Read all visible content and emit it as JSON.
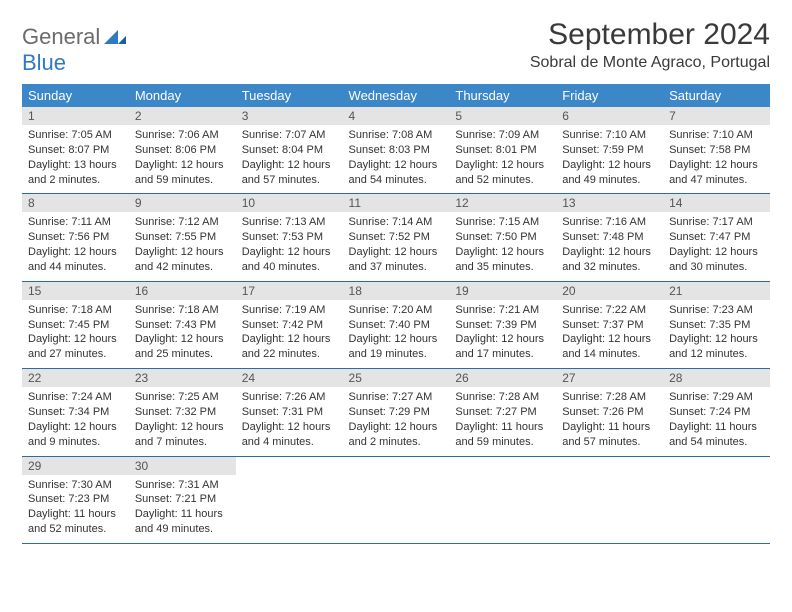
{
  "logo": {
    "part1": "General",
    "part2": "Blue"
  },
  "title": "September 2024",
  "location": "Sobral de Monte Agraco, Portugal",
  "colors": {
    "header_bg": "#3b87c8",
    "header_text": "#ffffff",
    "daynum_bg": "#e4e4e4",
    "row_border": "#2d6ca3",
    "logo_gray": "#6b6b6b",
    "logo_blue": "#2f7ac0"
  },
  "weekdays": [
    "Sunday",
    "Monday",
    "Tuesday",
    "Wednesday",
    "Thursday",
    "Friday",
    "Saturday"
  ],
  "weeks": [
    [
      {
        "n": "1",
        "sr": "7:05 AM",
        "ss": "8:07 PM",
        "dl": "13 hours and 2 minutes."
      },
      {
        "n": "2",
        "sr": "7:06 AM",
        "ss": "8:06 PM",
        "dl": "12 hours and 59 minutes."
      },
      {
        "n": "3",
        "sr": "7:07 AM",
        "ss": "8:04 PM",
        "dl": "12 hours and 57 minutes."
      },
      {
        "n": "4",
        "sr": "7:08 AM",
        "ss": "8:03 PM",
        "dl": "12 hours and 54 minutes."
      },
      {
        "n": "5",
        "sr": "7:09 AM",
        "ss": "8:01 PM",
        "dl": "12 hours and 52 minutes."
      },
      {
        "n": "6",
        "sr": "7:10 AM",
        "ss": "7:59 PM",
        "dl": "12 hours and 49 minutes."
      },
      {
        "n": "7",
        "sr": "7:10 AM",
        "ss": "7:58 PM",
        "dl": "12 hours and 47 minutes."
      }
    ],
    [
      {
        "n": "8",
        "sr": "7:11 AM",
        "ss": "7:56 PM",
        "dl": "12 hours and 44 minutes."
      },
      {
        "n": "9",
        "sr": "7:12 AM",
        "ss": "7:55 PM",
        "dl": "12 hours and 42 minutes."
      },
      {
        "n": "10",
        "sr": "7:13 AM",
        "ss": "7:53 PM",
        "dl": "12 hours and 40 minutes."
      },
      {
        "n": "11",
        "sr": "7:14 AM",
        "ss": "7:52 PM",
        "dl": "12 hours and 37 minutes."
      },
      {
        "n": "12",
        "sr": "7:15 AM",
        "ss": "7:50 PM",
        "dl": "12 hours and 35 minutes."
      },
      {
        "n": "13",
        "sr": "7:16 AM",
        "ss": "7:48 PM",
        "dl": "12 hours and 32 minutes."
      },
      {
        "n": "14",
        "sr": "7:17 AM",
        "ss": "7:47 PM",
        "dl": "12 hours and 30 minutes."
      }
    ],
    [
      {
        "n": "15",
        "sr": "7:18 AM",
        "ss": "7:45 PM",
        "dl": "12 hours and 27 minutes."
      },
      {
        "n": "16",
        "sr": "7:18 AM",
        "ss": "7:43 PM",
        "dl": "12 hours and 25 minutes."
      },
      {
        "n": "17",
        "sr": "7:19 AM",
        "ss": "7:42 PM",
        "dl": "12 hours and 22 minutes."
      },
      {
        "n": "18",
        "sr": "7:20 AM",
        "ss": "7:40 PM",
        "dl": "12 hours and 19 minutes."
      },
      {
        "n": "19",
        "sr": "7:21 AM",
        "ss": "7:39 PM",
        "dl": "12 hours and 17 minutes."
      },
      {
        "n": "20",
        "sr": "7:22 AM",
        "ss": "7:37 PM",
        "dl": "12 hours and 14 minutes."
      },
      {
        "n": "21",
        "sr": "7:23 AM",
        "ss": "7:35 PM",
        "dl": "12 hours and 12 minutes."
      }
    ],
    [
      {
        "n": "22",
        "sr": "7:24 AM",
        "ss": "7:34 PM",
        "dl": "12 hours and 9 minutes."
      },
      {
        "n": "23",
        "sr": "7:25 AM",
        "ss": "7:32 PM",
        "dl": "12 hours and 7 minutes."
      },
      {
        "n": "24",
        "sr": "7:26 AM",
        "ss": "7:31 PM",
        "dl": "12 hours and 4 minutes."
      },
      {
        "n": "25",
        "sr": "7:27 AM",
        "ss": "7:29 PM",
        "dl": "12 hours and 2 minutes."
      },
      {
        "n": "26",
        "sr": "7:28 AM",
        "ss": "7:27 PM",
        "dl": "11 hours and 59 minutes."
      },
      {
        "n": "27",
        "sr": "7:28 AM",
        "ss": "7:26 PM",
        "dl": "11 hours and 57 minutes."
      },
      {
        "n": "28",
        "sr": "7:29 AM",
        "ss": "7:24 PM",
        "dl": "11 hours and 54 minutes."
      }
    ],
    [
      {
        "n": "29",
        "sr": "7:30 AM",
        "ss": "7:23 PM",
        "dl": "11 hours and 52 minutes."
      },
      {
        "n": "30",
        "sr": "7:31 AM",
        "ss": "7:21 PM",
        "dl": "11 hours and 49 minutes."
      },
      null,
      null,
      null,
      null,
      null
    ]
  ],
  "labels": {
    "sunrise": "Sunrise: ",
    "sunset": "Sunset: ",
    "daylight": "Daylight: "
  }
}
